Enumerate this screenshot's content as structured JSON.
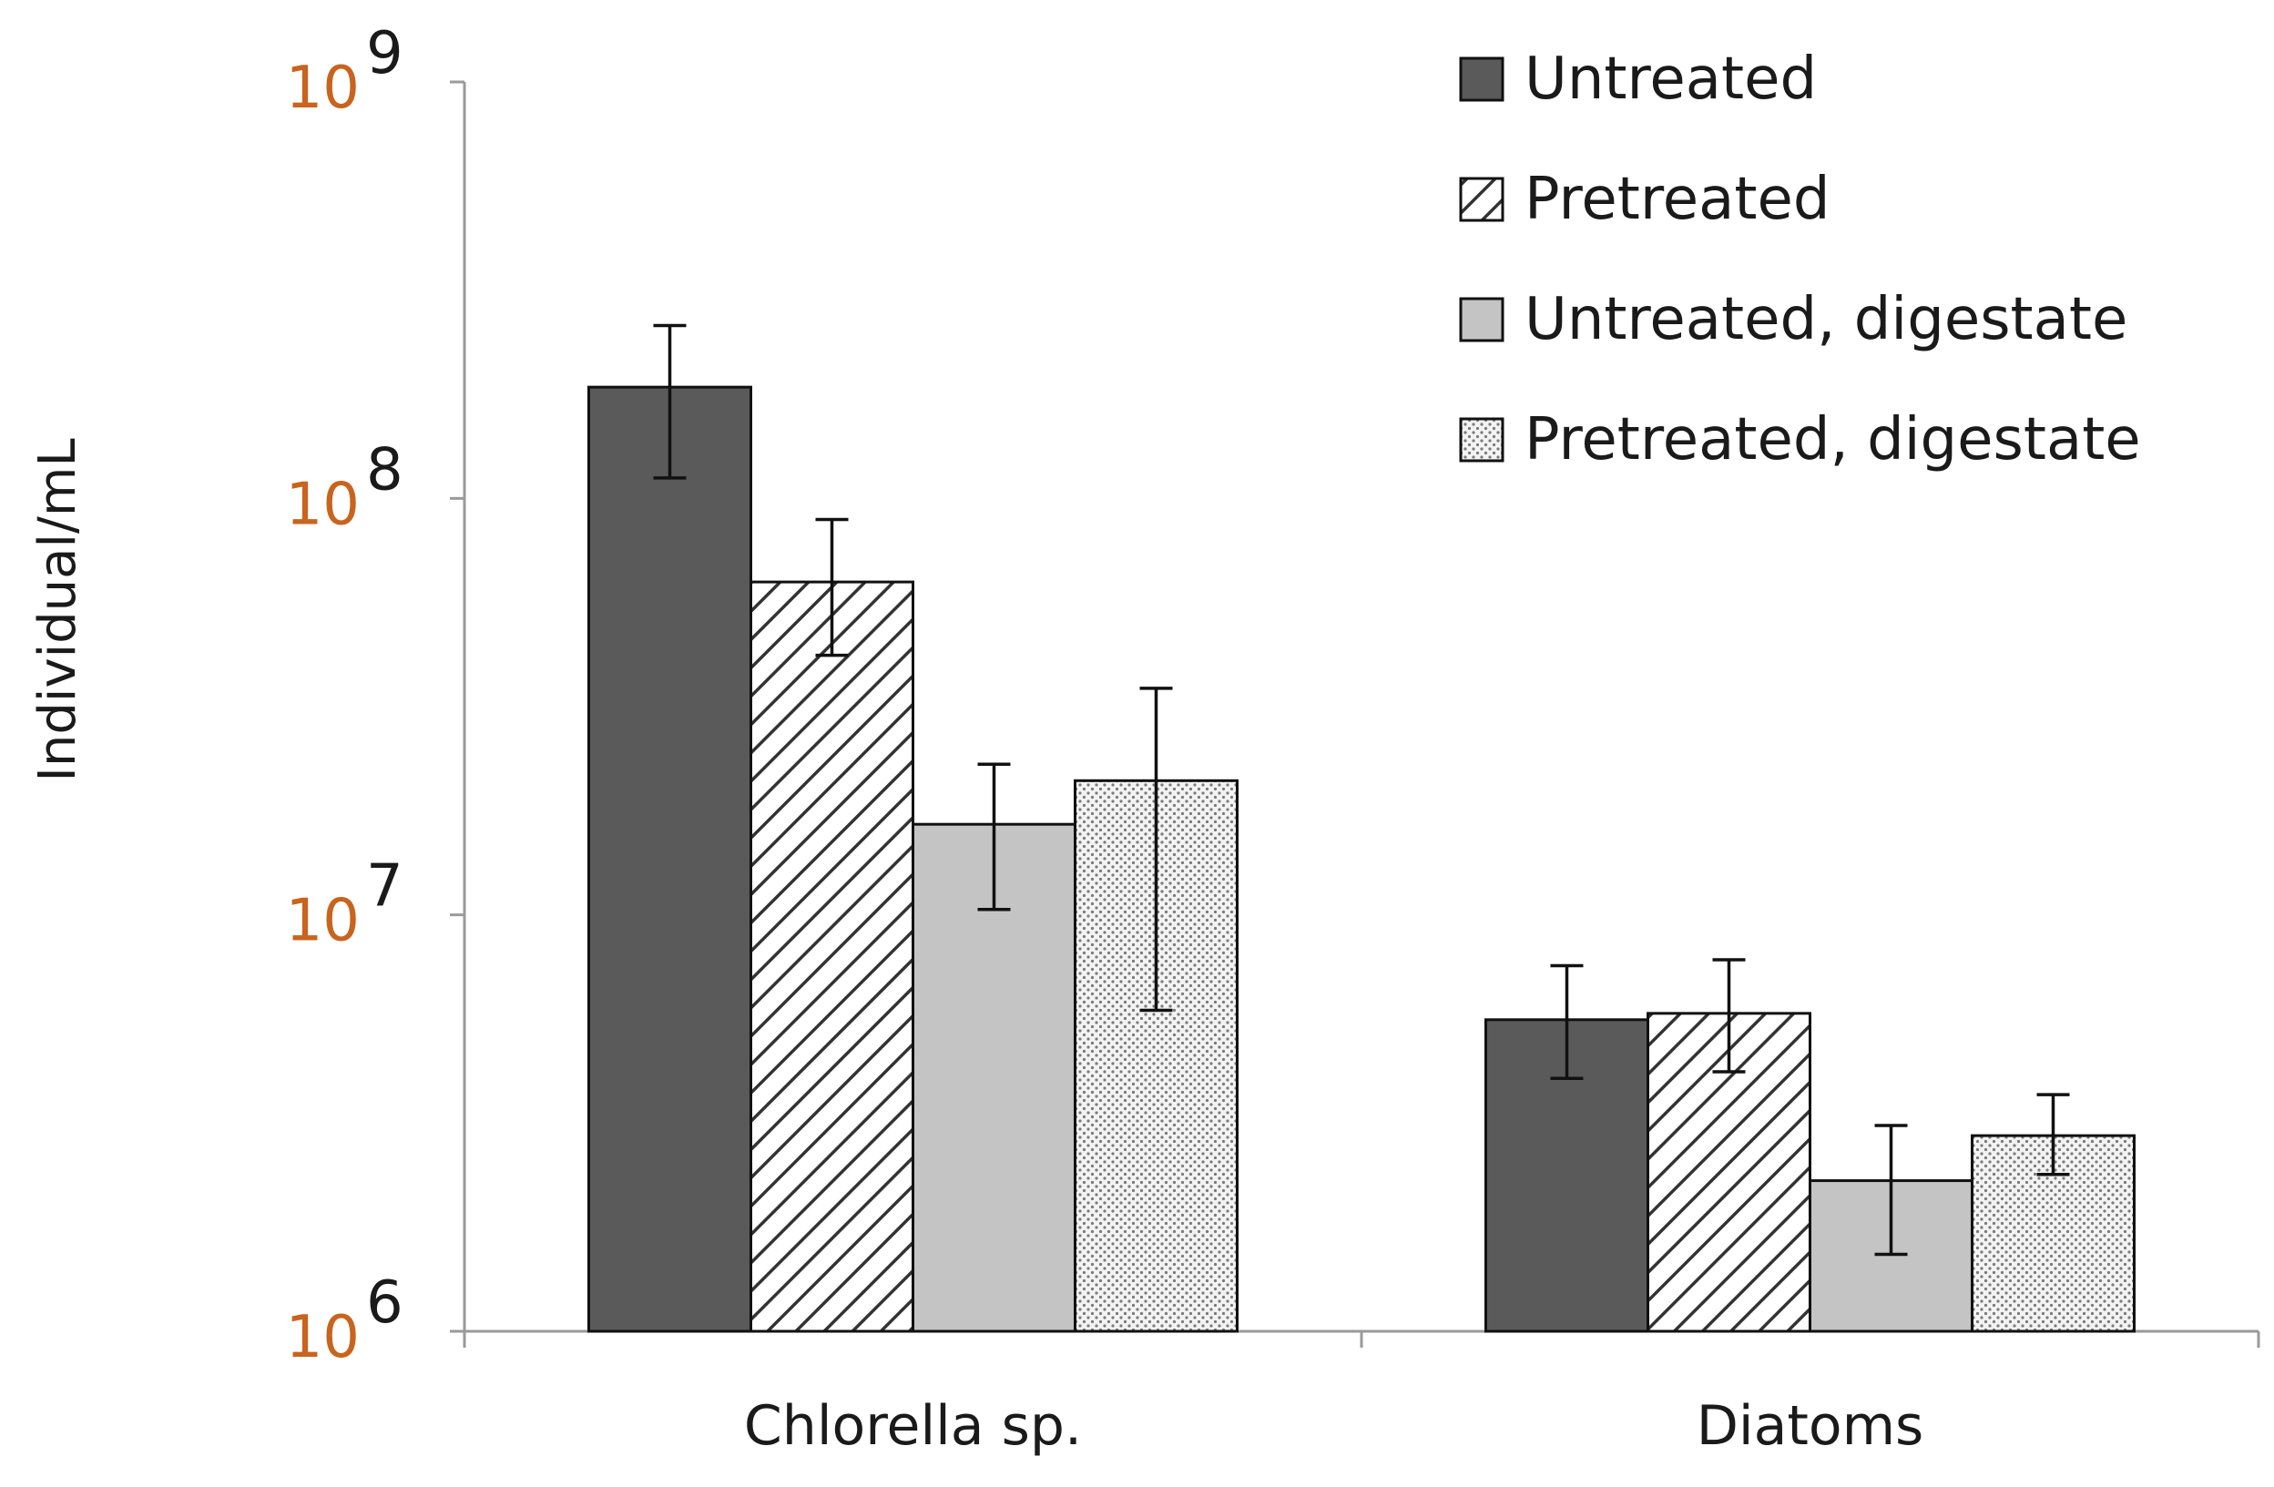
{
  "chart_data": {
    "type": "bar",
    "title": "",
    "xlabel": "",
    "ylabel": "Individual/mL",
    "yscale": "log",
    "ylim": [
      1000000,
      1000000000
    ],
    "ytick_labels": [
      {
        "base": "10",
        "exp": "6"
      },
      {
        "base": "10",
        "exp": "7"
      },
      {
        "base": "10",
        "exp": "8"
      },
      {
        "base": "10",
        "exp": "9"
      }
    ],
    "categories": [
      "Chlorella sp.",
      "Diatoms"
    ],
    "series": [
      {
        "name": "Untreated",
        "pattern": "solid-dark",
        "values": [
          185000000,
          5600000
        ],
        "error_low": [
          112000000,
          4050000
        ],
        "error_high": [
          260000000,
          7550000
        ]
      },
      {
        "name": "Pretreated",
        "pattern": "diagonal-hatch",
        "values": [
          63000000,
          5800000
        ],
        "error_low": [
          42000000,
          4200000
        ],
        "error_high": [
          89000000,
          7800000
        ]
      },
      {
        "name": "Untreated, digestate",
        "pattern": "solid-light",
        "values": [
          16500000,
          2300000
        ],
        "error_low": [
          10300000,
          1530000
        ],
        "error_high": [
          23000000,
          3120000
        ]
      },
      {
        "name": "Pretreated, digestate",
        "pattern": "dotted",
        "values": [
          21000000,
          2950000
        ],
        "error_low": [
          5900000,
          2380000
        ],
        "error_high": [
          35000000,
          3700000
        ]
      }
    ],
    "legend_position": "top-right",
    "colors": {
      "dark": "#5a5a5a",
      "light": "#c4c4c4",
      "hatch": "#333333",
      "dots": "#7a7a7a",
      "axis": "#9a9a9a",
      "tick_text": "#c8641e",
      "text": "#1a1a1a"
    }
  }
}
